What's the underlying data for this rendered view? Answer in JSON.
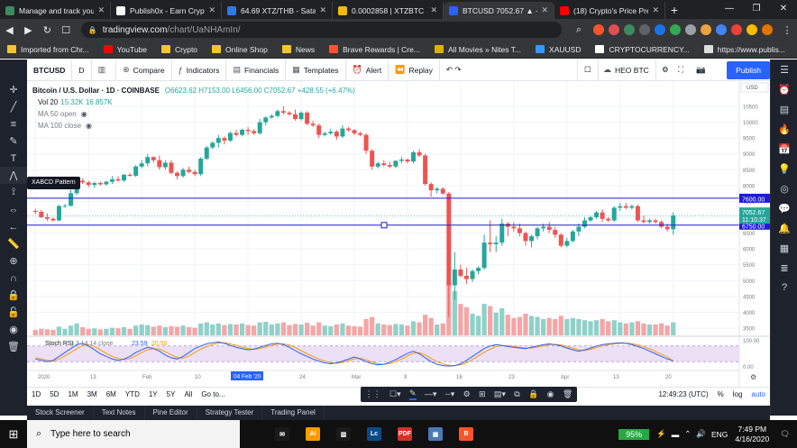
{
  "browser": {
    "tabs": [
      {
        "title": "Manage and track your",
        "color": "#3c8c5c"
      },
      {
        "title": "Publish0x - Earn Crypto",
        "color": "#ffffff"
      },
      {
        "title": "64.69 XTZ/THB - Satan",
        "color": "#2c7be5"
      },
      {
        "title": "0.0002858 | XTZBTC | B",
        "color": "#f0b90b"
      },
      {
        "title": "BTCUSD 7052.67 ▲ +6.",
        "color": "#2962ff"
      },
      {
        "title": "(18) Crypto's Price Pre",
        "color": "#ff0000"
      }
    ],
    "new_tab": "+",
    "window_controls": [
      "—",
      "❐",
      "✕"
    ],
    "url_host": "tradingview.com",
    "url_path": "/chart/UaNHAmIn/",
    "bookmarks": [
      {
        "label": "Imported from Chr...",
        "color": "#f4c430"
      },
      {
        "label": "YouTube",
        "color": "#ff0000"
      },
      {
        "label": "Crypto",
        "color": "#f4c430"
      },
      {
        "label": "Online Shop",
        "color": "#f4c430"
      },
      {
        "label": "News",
        "color": "#f4c430"
      },
      {
        "label": "Brave Rewards | Cre...",
        "color": "#fb542b"
      },
      {
        "label": "All Movies » Nites T...",
        "color": "#e0b000"
      },
      {
        "label": "XAUUSD",
        "color": "#3399ff"
      },
      {
        "label": "CRYPTOCURRENCY...",
        "color": "#ffffff"
      },
      {
        "label": "https://www.publis...",
        "color": "#dddddd"
      }
    ]
  },
  "toolbar": {
    "symbol": "BTCUSD",
    "interval": "D",
    "compare": "Compare",
    "indicators": "Indicators",
    "financials": "Financials",
    "templates": "Templates",
    "alert": "Alert",
    "replay": "Replay",
    "account": "HEO BTC",
    "publish": "Publish"
  },
  "legend": {
    "title": "Bitcoin / U.S. Dollar · 1D · COINBASE",
    "ohlc": "O6623.62 H7153.00 L6456.00 C7052.67 +428.55 (+6.47%)",
    "vol": "Vol 20",
    "vol_values": "15.32K 16.857K",
    "ma50": "MA 50 open",
    "ma100": "MA 100 close"
  },
  "xabcd_tooltip": "XABCD Pattern",
  "chart_data": {
    "type": "candlestick",
    "symbol": "BTCUSD",
    "exchange": "COINBASE",
    "interval": "1D",
    "currency": "USD",
    "ylim": [
      3500,
      10500
    ],
    "y_ticks": [
      10500,
      10000,
      9500,
      9000,
      8500,
      8000,
      7500,
      7000,
      6500,
      6000,
      5500,
      5000,
      4500,
      4000,
      3500
    ],
    "x_ticks": [
      "2020",
      "13",
      "Feb",
      "10",
      "17",
      "24",
      "Mar",
      "9",
      "16",
      "23",
      "Apr",
      "13",
      "20"
    ],
    "x_highlight": "04 Feb '20",
    "hlines": [
      {
        "price": 7600.0,
        "label": "7600.00"
      },
      {
        "price": 6750.0,
        "label": "6750.00"
      }
    ],
    "last_price": "7052.67",
    "countdown": "11:10:37",
    "candles": [
      [
        7200,
        7260,
        7100,
        7170
      ],
      [
        7170,
        7230,
        6980,
        7000
      ],
      [
        7000,
        7120,
        6880,
        6950
      ],
      [
        6950,
        7000,
        6870,
        6900
      ],
      [
        6900,
        7400,
        6880,
        7350
      ],
      [
        7350,
        7420,
        7300,
        7360
      ],
      [
        7360,
        7870,
        7340,
        7760
      ],
      [
        7760,
        8200,
        7700,
        8150
      ],
      [
        8150,
        8230,
        8050,
        8100
      ],
      [
        8100,
        8150,
        7950,
        8020
      ],
      [
        8020,
        8120,
        7930,
        8080
      ],
      [
        8080,
        8120,
        8000,
        8040
      ],
      [
        8040,
        8150,
        8000,
        8120
      ],
      [
        8120,
        8300,
        8050,
        8200
      ],
      [
        8200,
        8290,
        8120,
        8160
      ],
      [
        8160,
        8370,
        8120,
        8340
      ],
      [
        8340,
        8400,
        8280,
        8310
      ],
      [
        8310,
        8650,
        8270,
        8600
      ],
      [
        8600,
        8800,
        8550,
        8700
      ],
      [
        8700,
        8990,
        8600,
        8900
      ],
      [
        8900,
        8920,
        8720,
        8800
      ],
      [
        8800,
        8950,
        8500,
        8580
      ],
      [
        8580,
        8800,
        8500,
        8720
      ],
      [
        8720,
        8800,
        8350,
        8400
      ],
      [
        8400,
        8450,
        8200,
        8300
      ],
      [
        8300,
        8560,
        8250,
        8500
      ],
      [
        8500,
        8600,
        8380,
        8430
      ],
      [
        8430,
        8500,
        8300,
        8360
      ],
      [
        8360,
        8900,
        8300,
        8850
      ],
      [
        8850,
        9250,
        8800,
        9200
      ],
      [
        9200,
        9400,
        9150,
        9350
      ],
      [
        9350,
        9600,
        9200,
        9500
      ],
      [
        9500,
        9550,
        9300,
        9420
      ],
      [
        9420,
        9700,
        9380,
        9660
      ],
      [
        9660,
        9760,
        9550,
        9600
      ],
      [
        9600,
        9800,
        9550,
        9760
      ],
      [
        9760,
        9850,
        9600,
        9720
      ],
      [
        9720,
        9780,
        9600,
        9650
      ],
      [
        9650,
        10100,
        9600,
        10000
      ],
      [
        10000,
        10180,
        9900,
        10150
      ],
      [
        10150,
        10250,
        10100,
        10200
      ],
      [
        10200,
        10400,
        10150,
        10350
      ],
      [
        10350,
        10500,
        10250,
        10300
      ],
      [
        10300,
        10350,
        10200,
        10250
      ],
      [
        10250,
        10400,
        10050,
        10100
      ],
      [
        10100,
        10350,
        10050,
        10300
      ],
      [
        10300,
        10350,
        9900,
        9950
      ],
      [
        9950,
        10050,
        9850,
        9900
      ],
      [
        9900,
        9950,
        9500,
        9600
      ],
      [
        9600,
        9700,
        9550,
        9650
      ],
      [
        9650,
        9800,
        9600,
        9700
      ],
      [
        9700,
        9750,
        9450,
        9550
      ],
      [
        9550,
        9900,
        9500,
        9800
      ],
      [
        9800,
        9850,
        9700,
        9750
      ],
      [
        9750,
        9780,
        9600,
        9650
      ],
      [
        9650,
        9700,
        9550,
        9600
      ],
      [
        9600,
        9650,
        9000,
        9100
      ],
      [
        9100,
        9150,
        8500,
        8600
      ],
      [
        8600,
        8750,
        8550,
        8700
      ],
      [
        8700,
        8800,
        8600,
        8650
      ],
      [
        8650,
        8750,
        8550,
        8600
      ],
      [
        8600,
        8800,
        8550,
        8780
      ],
      [
        8780,
        8900,
        8700,
        8820
      ],
      [
        8820,
        8850,
        8700,
        8760
      ],
      [
        8760,
        9100,
        8700,
        9050
      ],
      [
        9050,
        9150,
        8900,
        8950
      ],
      [
        8950,
        9000,
        8000,
        8050
      ],
      [
        8050,
        8100,
        7650,
        7850
      ],
      [
        7850,
        7950,
        7750,
        7900
      ],
      [
        7900,
        7950,
        7700,
        7750
      ],
      [
        7750,
        7800,
        3850,
        4850
      ],
      [
        4850,
        5900,
        4400,
        5350
      ],
      [
        5350,
        5500,
        5100,
        5150
      ],
      [
        5150,
        5400,
        4900,
        5050
      ],
      [
        5050,
        5350,
        4950,
        5300
      ],
      [
        5300,
        5450,
        5200,
        5400
      ],
      [
        5400,
        6450,
        5350,
        6200
      ],
      [
        6200,
        6900,
        5900,
        6150
      ],
      [
        6150,
        6400,
        5900,
        6200
      ],
      [
        6200,
        6950,
        6100,
        6800
      ],
      [
        6800,
        6850,
        6400,
        6700
      ],
      [
        6700,
        6850,
        6550,
        6650
      ],
      [
        6650,
        6800,
        6400,
        6500
      ],
      [
        6500,
        6550,
        6100,
        6250
      ],
      [
        6250,
        6450,
        6050,
        6400
      ],
      [
        6400,
        6700,
        6300,
        6650
      ],
      [
        6650,
        6800,
        6550,
        6700
      ],
      [
        6700,
        6850,
        6500,
        6600
      ],
      [
        6600,
        6700,
        6350,
        6450
      ],
      [
        6450,
        6500,
        6050,
        6100
      ],
      [
        6100,
        6350,
        6050,
        6250
      ],
      [
        6250,
        6600,
        6200,
        6550
      ],
      [
        6550,
        6800,
        6400,
        6700
      ],
      [
        6700,
        7000,
        6650,
        6900
      ],
      [
        6900,
        7050,
        6850,
        7000
      ],
      [
        7000,
        7200,
        6950,
        7150
      ],
      [
        7150,
        7250,
        6850,
        6950
      ],
      [
        6950,
        7000,
        6850,
        6900
      ],
      [
        6900,
        7350,
        6850,
        7300
      ],
      [
        7300,
        7450,
        7200,
        7350
      ],
      [
        7350,
        7450,
        7250,
        7300
      ],
      [
        7300,
        7400,
        7250,
        7350
      ],
      [
        7350,
        7400,
        6850,
        6900
      ],
      [
        6900,
        7050,
        6800,
        6850
      ],
      [
        6850,
        6950,
        6800,
        6900
      ],
      [
        6900,
        6950,
        6800,
        6850
      ],
      [
        6850,
        6900,
        6650,
        6700
      ],
      [
        6700,
        6800,
        6550,
        6620
      ],
      [
        6620,
        7153,
        6456,
        7052.67
      ]
    ],
    "volume": [
      10,
      12,
      11,
      10,
      16,
      12,
      18,
      22,
      15,
      12,
      13,
      11,
      12,
      14,
      13,
      15,
      12,
      18,
      20,
      19,
      16,
      18,
      15,
      17,
      16,
      18,
      15,
      14,
      22,
      24,
      20,
      22,
      19,
      21,
      20,
      22,
      19,
      18,
      24,
      25,
      20,
      22,
      24,
      19,
      21,
      20,
      23,
      18,
      24,
      18,
      17,
      20,
      22,
      18,
      17,
      16,
      30,
      34,
      22,
      20,
      19,
      21,
      20,
      18,
      26,
      24,
      38,
      32,
      20,
      22,
      100,
      82,
      58,
      52,
      40,
      36,
      58,
      54,
      42,
      50,
      38,
      32,
      34,
      40,
      36,
      34,
      30,
      32,
      30,
      36,
      30,
      32,
      30,
      28,
      26,
      28,
      30,
      26,
      28,
      24,
      22,
      24,
      26,
      22,
      20,
      20,
      22,
      18,
      24
    ],
    "stoch_rsi": {
      "label": "Stoch RSI",
      "params": "3 3 14 14 close",
      "k": "23.59",
      "d": "20.50",
      "ylim": [
        0,
        100
      ],
      "y_ticks": [
        "100.00",
        "0.00"
      ],
      "k_values": [
        30,
        25,
        20,
        25,
        40,
        55,
        70,
        85,
        90,
        80,
        65,
        50,
        40,
        30,
        25,
        30,
        40,
        55,
        65,
        75,
        70,
        60,
        45,
        35,
        30,
        40,
        55,
        70,
        80,
        88,
        92,
        95,
        90,
        82,
        75,
        70,
        65,
        68,
        75,
        82,
        88,
        90,
        85,
        75,
        62,
        50,
        40,
        30,
        22,
        15,
        12,
        15,
        22,
        30,
        38,
        30,
        20,
        12,
        8,
        10,
        18,
        28,
        40,
        52,
        60,
        50,
        35,
        20,
        10,
        5,
        3,
        5,
        12,
        25,
        40,
        55,
        70,
        80,
        85,
        82,
        78,
        75,
        72,
        70,
        75,
        80,
        85,
        88,
        85,
        80,
        72,
        65,
        60,
        65,
        72,
        80,
        85,
        88,
        90,
        92,
        90,
        85,
        78,
        70,
        60,
        50,
        40,
        30,
        24
      ],
      "d_values": [
        35,
        30,
        25,
        22,
        30,
        42,
        55,
        70,
        82,
        85,
        78,
        65,
        52,
        40,
        32,
        28,
        32,
        42,
        55,
        65,
        70,
        68,
        58,
        46,
        36,
        33,
        42,
        55,
        68,
        78,
        86,
        91,
        92,
        88,
        82,
        76,
        70,
        67,
        70,
        76,
        82,
        87,
        88,
        83,
        74,
        62,
        50,
        40,
        30,
        22,
        16,
        14,
        17,
        24,
        31,
        33,
        27,
        19,
        12,
        10,
        13,
        20,
        30,
        42,
        52,
        54,
        46,
        32,
        20,
        11,
        6,
        5,
        8,
        16,
        28,
        42,
        56,
        68,
        78,
        82,
        81,
        78,
        75,
        72,
        72,
        76,
        80,
        85,
        86,
        84,
        78,
        71,
        65,
        63,
        67,
        74,
        80,
        85,
        88,
        90,
        91,
        89,
        84,
        77,
        69,
        59,
        48,
        38,
        21
      ]
    }
  },
  "timeframes": [
    "1D",
    "5D",
    "1M",
    "3M",
    "6M",
    "YTD",
    "1Y",
    "5Y",
    "All",
    "Go to..."
  ],
  "status": {
    "time": "12:49:23 (UTC)",
    "percent": "%",
    "log": "log",
    "auto": "auto"
  },
  "panels": [
    "Stock Screener",
    "Text Notes",
    "Pine Editor",
    "Strategy Tester",
    "Trading Panel"
  ],
  "taskbar": {
    "search_placeholder": "Type here to search",
    "battery": "95%",
    "lang": "ENG",
    "time": "7:49 PM",
    "date": "4/16/2020",
    "apps": [
      {
        "label": "✉",
        "color": "#1a1a1a"
      },
      {
        "label": "Ai",
        "color": "#ff9a00"
      },
      {
        "label": "▥",
        "color": "#1a1a1a"
      },
      {
        "label": "Lc",
        "color": "#0a4a8a"
      },
      {
        "label": "PDF",
        "color": "#d93025"
      },
      {
        "label": "▣",
        "color": "#4a7ab8"
      },
      {
        "label": "B",
        "color": "#fb542b"
      }
    ]
  }
}
